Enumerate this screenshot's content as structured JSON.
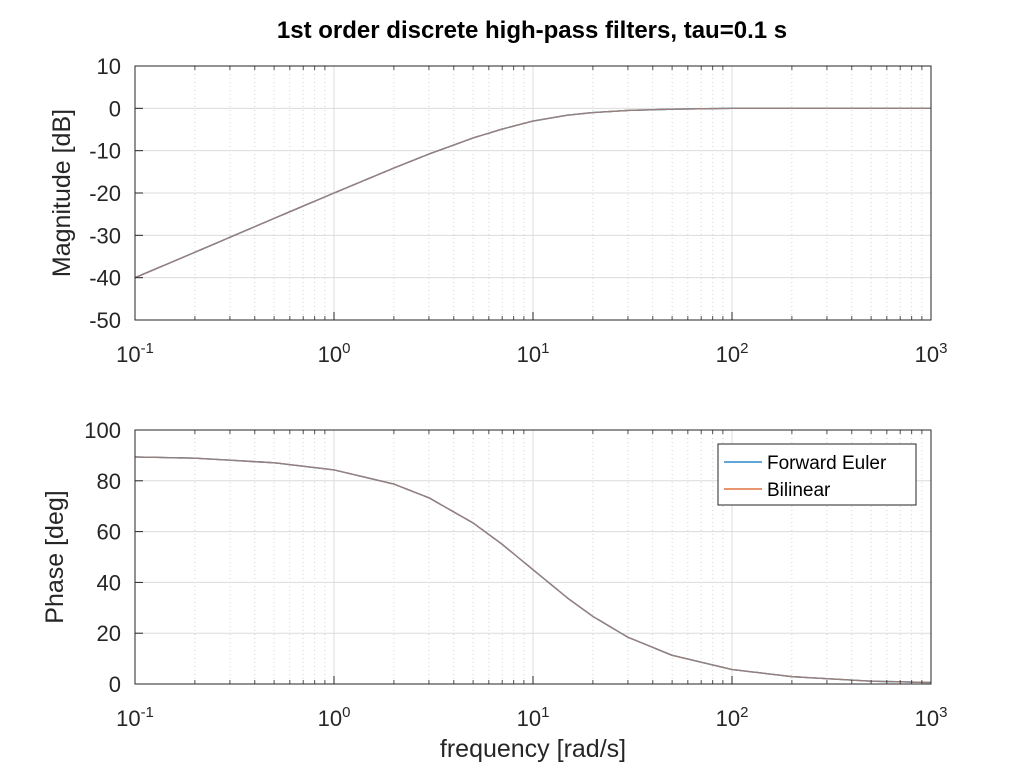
{
  "figure": {
    "title": "1st order discrete high-pass filters, tau=0.1 s"
  },
  "colors": {
    "forward_euler": "#0072BD",
    "bilinear": "#D95319",
    "overlap_line": "#9C7F78",
    "grid": "#dcdcdc",
    "axis": "#262626"
  },
  "chart_data": [
    {
      "type": "line",
      "title": "1st order discrete high-pass filters, tau=0.1 s",
      "xlabel": "",
      "ylabel": "Magnitude [dB]",
      "xscale": "log",
      "xlim": [
        0.1,
        1000
      ],
      "ylim": [
        -50,
        10
      ],
      "yticks": [
        -50,
        -40,
        -30,
        -20,
        -10,
        0,
        10
      ],
      "xticks": [
        {
          "base": "10",
          "exp": "-1"
        },
        {
          "base": "10",
          "exp": "0"
        },
        {
          "base": "10",
          "exp": "1"
        },
        {
          "base": "10",
          "exp": "2"
        },
        {
          "base": "10",
          "exp": "3"
        }
      ],
      "grid": true,
      "series": [
        {
          "name": "Forward Euler",
          "x": [
            0.1,
            0.2,
            0.5,
            1,
            2,
            3,
            5,
            7,
            10,
            15,
            20,
            30,
            50,
            100,
            200,
            500,
            1000
          ],
          "y": [
            -40.0,
            -34.0,
            -26.0,
            -20.0,
            -14.1,
            -10.8,
            -7.0,
            -4.9,
            -3.0,
            -1.6,
            -1.0,
            -0.5,
            -0.2,
            0.0,
            0.0,
            0.0,
            0.0
          ]
        },
        {
          "name": "Bilinear",
          "x": [
            0.1,
            0.2,
            0.5,
            1,
            2,
            3,
            5,
            7,
            10,
            15,
            20,
            30,
            50,
            100,
            200,
            500,
            1000
          ],
          "y": [
            -40.0,
            -34.0,
            -26.0,
            -20.0,
            -14.1,
            -10.8,
            -7.0,
            -4.9,
            -3.0,
            -1.6,
            -1.0,
            -0.5,
            -0.2,
            0.0,
            0.0,
            0.0,
            0.0
          ]
        }
      ]
    },
    {
      "type": "line",
      "xlabel": "frequency [rad/s]",
      "ylabel": "Phase [deg]",
      "xscale": "log",
      "xlim": [
        0.1,
        1000
      ],
      "ylim": [
        0,
        100
      ],
      "yticks": [
        0,
        20,
        40,
        60,
        80,
        100
      ],
      "xticks": [
        {
          "base": "10",
          "exp": "-1"
        },
        {
          "base": "10",
          "exp": "0"
        },
        {
          "base": "10",
          "exp": "1"
        },
        {
          "base": "10",
          "exp": "2"
        },
        {
          "base": "10",
          "exp": "3"
        }
      ],
      "grid": true,
      "legend": {
        "placement": "top-right",
        "entries": [
          "Forward Euler",
          "Bilinear"
        ]
      },
      "series": [
        {
          "name": "Forward Euler",
          "x": [
            0.1,
            0.2,
            0.5,
            1,
            2,
            3,
            5,
            7,
            10,
            15,
            20,
            30,
            50,
            100,
            200,
            500,
            1000
          ],
          "y": [
            89.4,
            88.9,
            87.1,
            84.3,
            78.7,
            73.3,
            63.4,
            55.0,
            45.0,
            33.7,
            26.6,
            18.4,
            11.3,
            5.7,
            2.9,
            1.1,
            0.6
          ]
        },
        {
          "name": "Bilinear",
          "x": [
            0.1,
            0.2,
            0.5,
            1,
            2,
            3,
            5,
            7,
            10,
            15,
            20,
            30,
            50,
            100,
            200,
            500,
            1000
          ],
          "y": [
            89.4,
            88.9,
            87.1,
            84.3,
            78.7,
            73.3,
            63.4,
            55.0,
            45.0,
            33.7,
            26.6,
            18.4,
            11.3,
            5.7,
            2.9,
            1.1,
            0.6
          ]
        }
      ]
    }
  ]
}
